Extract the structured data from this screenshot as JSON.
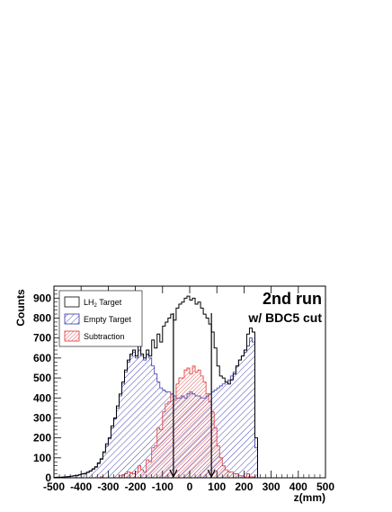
{
  "chart_data": {
    "type": "histogram-step",
    "xlabel": "z(mm)",
    "ylabel": "Counts",
    "xlim": [
      -500,
      500
    ],
    "ylim": [
      0,
      960
    ],
    "x_ticks": [
      -500,
      -400,
      -300,
      -200,
      -100,
      0,
      100,
      200,
      300,
      400,
      500
    ],
    "y_ticks": [
      0,
      100,
      200,
      300,
      400,
      500,
      600,
      700,
      800,
      900
    ],
    "bin_width": 10,
    "grid": false,
    "legend_placement": "top-left",
    "annotations": {
      "line1": "2nd run",
      "line2": "w/ BDC5 cut"
    },
    "cut_arrows_x": [
      -60,
      80
    ],
    "series": [
      {
        "name": "LH2 Target",
        "style": "black outline",
        "x": [
          -500,
          -490,
          -480,
          -470,
          -460,
          -450,
          -440,
          -430,
          -420,
          -410,
          -400,
          -390,
          -380,
          -370,
          -360,
          -350,
          -340,
          -330,
          -320,
          -310,
          -300,
          -290,
          -280,
          -270,
          -260,
          -250,
          -240,
          -230,
          -220,
          -210,
          -200,
          -190,
          -180,
          -170,
          -160,
          -150,
          -140,
          -130,
          -120,
          -110,
          -100,
          -90,
          -80,
          -70,
          -60,
          -50,
          -40,
          -30,
          -20,
          -10,
          0,
          10,
          20,
          30,
          40,
          50,
          60,
          70,
          80,
          90,
          100,
          110,
          120,
          130,
          140,
          150,
          160,
          170,
          180,
          190,
          200,
          210,
          220,
          230,
          240,
          250,
          260,
          270,
          280,
          290,
          300,
          500
        ],
        "values": [
          2,
          3,
          3,
          4,
          5,
          6,
          8,
          10,
          12,
          15,
          20,
          22,
          28,
          35,
          45,
          55,
          75,
          95,
          130,
          170,
          200,
          260,
          300,
          360,
          420,
          480,
          540,
          590,
          620,
          640,
          610,
          660,
          620,
          600,
          640,
          610,
          690,
          650,
          720,
          680,
          760,
          780,
          800,
          820,
          790,
          850,
          870,
          880,
          900,
          910,
          890,
          900,
          870,
          880,
          850,
          820,
          800,
          770,
          730,
          650,
          560,
          510,
          500,
          480,
          470,
          490,
          520,
          560,
          590,
          610,
          640,
          720,
          750,
          730,
          200,
          0,
          0,
          0,
          0,
          0,
          0,
          0
        ]
      },
      {
        "name": "Empty Target",
        "style": "blue hatched",
        "x": [
          -500,
          -490,
          -480,
          -470,
          -460,
          -450,
          -440,
          -430,
          -420,
          -410,
          -400,
          -390,
          -380,
          -370,
          -360,
          -350,
          -340,
          -330,
          -320,
          -310,
          -300,
          -290,
          -280,
          -270,
          -260,
          -250,
          -240,
          -230,
          -220,
          -210,
          -200,
          -190,
          -180,
          -170,
          -160,
          -150,
          -140,
          -130,
          -120,
          -110,
          -100,
          -90,
          -80,
          -70,
          -60,
          -50,
          -40,
          -30,
          -20,
          -10,
          0,
          10,
          20,
          30,
          40,
          50,
          60,
          70,
          80,
          90,
          100,
          110,
          120,
          130,
          140,
          150,
          160,
          170,
          180,
          190,
          200,
          210,
          220,
          230,
          240,
          250,
          260,
          270,
          280,
          290,
          300,
          500
        ],
        "values": [
          2,
          3,
          3,
          4,
          5,
          6,
          8,
          10,
          12,
          15,
          18,
          20,
          26,
          33,
          42,
          52,
          70,
          92,
          125,
          160,
          195,
          250,
          295,
          350,
          410,
          470,
          530,
          580,
          610,
          630,
          600,
          640,
          610,
          590,
          620,
          600,
          560,
          520,
          480,
          450,
          440,
          430,
          430,
          420,
          410,
          400,
          400,
          410,
          400,
          420,
          430,
          420,
          410,
          410,
          400,
          400,
          410,
          420,
          430,
          440,
          450,
          460,
          470,
          480,
          490,
          510,
          530,
          560,
          590,
          610,
          630,
          660,
          700,
          680,
          150,
          0,
          0,
          0,
          0,
          0,
          0,
          0
        ]
      },
      {
        "name": "Subtraction",
        "style": "red hatched",
        "x": [
          -500,
          -490,
          -480,
          -470,
          -460,
          -450,
          -440,
          -430,
          -420,
          -410,
          -400,
          -390,
          -380,
          -370,
          -360,
          -350,
          -340,
          -330,
          -320,
          -310,
          -300,
          -290,
          -280,
          -270,
          -260,
          -250,
          -240,
          -230,
          -220,
          -210,
          -200,
          -190,
          -180,
          -170,
          -160,
          -150,
          -140,
          -130,
          -120,
          -110,
          -100,
          -90,
          -80,
          -70,
          -60,
          -50,
          -40,
          -30,
          -20,
          -10,
          0,
          10,
          20,
          30,
          40,
          50,
          60,
          70,
          80,
          90,
          100,
          110,
          120,
          130,
          140,
          150,
          160,
          170,
          180,
          190,
          200,
          210,
          220,
          230,
          240,
          250,
          260,
          270,
          280,
          290,
          300,
          500
        ],
        "values": [
          0,
          0,
          0,
          0,
          0,
          0,
          0,
          0,
          0,
          0,
          0,
          0,
          0,
          0,
          0,
          0,
          0,
          5,
          0,
          0,
          0,
          0,
          0,
          0,
          10,
          15,
          20,
          30,
          25,
          20,
          30,
          60,
          40,
          30,
          90,
          80,
          150,
          160,
          250,
          240,
          330,
          370,
          380,
          420,
          390,
          470,
          500,
          500,
          540,
          550,
          520,
          560,
          530,
          540,
          510,
          480,
          420,
          380,
          330,
          250,
          160,
          100,
          60,
          40,
          30,
          30,
          20,
          20,
          10,
          10,
          5,
          20,
          5,
          5,
          0,
          0,
          0,
          0,
          0,
          0,
          0,
          0
        ]
      }
    ]
  },
  "legend": {
    "items": [
      {
        "label": "LH",
        "sub": "2",
        "suffix": " Target"
      },
      {
        "label": "Empty Target"
      },
      {
        "label": "Subtraction"
      }
    ]
  },
  "colors": {
    "lh2": "#000000",
    "empty": "#3333aa",
    "sub": "#dd3333"
  }
}
